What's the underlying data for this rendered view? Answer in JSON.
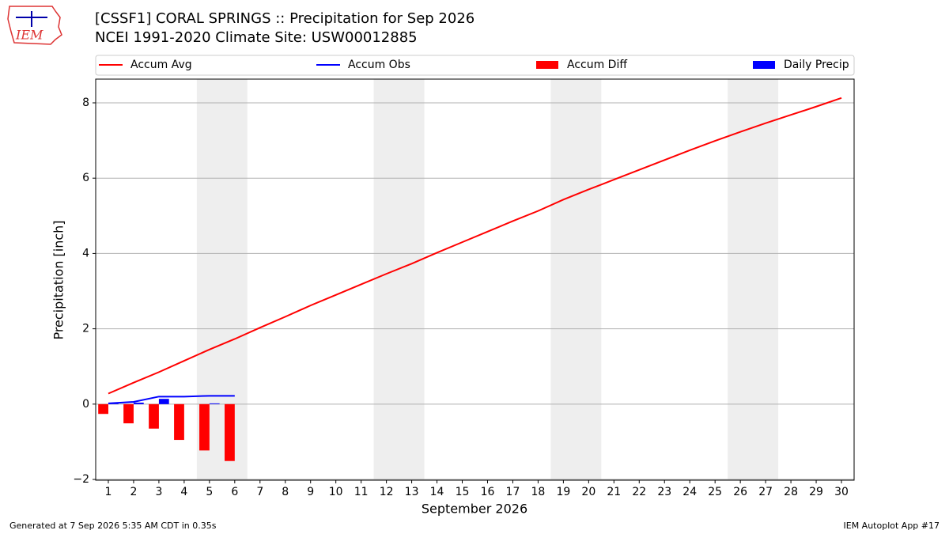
{
  "chart_data": {
    "type": "combo",
    "title": "[CSSF1] CORAL SPRINGS :: Precipitation for Sep 2026",
    "subtitle": "NCEI 1991-2020 Climate Site: USW00012885",
    "x_label": "September 2026",
    "y_label": "Precipitation [inch]",
    "logo_text": "IEM",
    "footer_left": "Generated at 7 Sep 2026 5:35 AM CDT in 0.35s",
    "footer_right": "IEM Autoplot App #17",
    "x": [
      1,
      2,
      3,
      4,
      5,
      6,
      7,
      8,
      9,
      10,
      11,
      12,
      13,
      14,
      15,
      16,
      17,
      18,
      19,
      20,
      21,
      22,
      23,
      24,
      25,
      26,
      27,
      28,
      29,
      30
    ],
    "xlim": [
      0.5,
      30.5
    ],
    "xticks": [
      1,
      2,
      3,
      4,
      5,
      6,
      7,
      8,
      9,
      10,
      11,
      12,
      13,
      14,
      15,
      16,
      17,
      18,
      19,
      20,
      21,
      22,
      23,
      24,
      25,
      26,
      27,
      28,
      29,
      30
    ],
    "ylim": [
      -2.02,
      8.63
    ],
    "yticks": [
      {
        "value": -2,
        "label": "−2"
      },
      0,
      2,
      4,
      6,
      8
    ],
    "grid": true,
    "shaded_ranges": [
      [
        4.5,
        6.5
      ],
      [
        11.5,
        13.5
      ],
      [
        18.5,
        20.5
      ],
      [
        25.5,
        27.5
      ]
    ],
    "shade_color": "#eeeeee",
    "series": [
      {
        "name": "Accum Avg",
        "color": "#ff0000",
        "kind": "line",
        "values": [
          0.28,
          0.57,
          0.85,
          1.15,
          1.45,
          1.73,
          2.03,
          2.32,
          2.62,
          2.9,
          3.18,
          3.46,
          3.73,
          4.02,
          4.3,
          4.58,
          4.86,
          5.13,
          5.43,
          5.7,
          5.96,
          6.22,
          6.48,
          6.74,
          6.99,
          7.23,
          7.46,
          7.68,
          7.9,
          8.13
        ]
      },
      {
        "name": "Accum Obs",
        "color": "#0000ff",
        "kind": "line",
        "values": [
          0.02,
          0.06,
          0.2,
          0.2,
          0.22,
          0.22,
          null,
          null,
          null,
          null,
          null,
          null,
          null,
          null,
          null,
          null,
          null,
          null,
          null,
          null,
          null,
          null,
          null,
          null,
          null,
          null,
          null,
          null,
          null,
          null
        ]
      },
      {
        "name": "Accum Diff",
        "color": "#ff0000",
        "kind": "bar",
        "values": [
          -0.26,
          -0.51,
          -0.65,
          -0.95,
          -1.23,
          -1.51,
          null,
          null,
          null,
          null,
          null,
          null,
          null,
          null,
          null,
          null,
          null,
          null,
          null,
          null,
          null,
          null,
          null,
          null,
          null,
          null,
          null,
          null,
          null,
          null
        ]
      },
      {
        "name": "Daily Precip",
        "color": "#0000ff",
        "kind": "bar",
        "values": [
          0.02,
          0.04,
          0.14,
          0.0,
          0.02,
          0.0,
          null,
          null,
          null,
          null,
          null,
          null,
          null,
          null,
          null,
          null,
          null,
          null,
          null,
          null,
          null,
          null,
          null,
          null,
          null,
          null,
          null,
          null,
          null,
          null
        ]
      }
    ]
  }
}
